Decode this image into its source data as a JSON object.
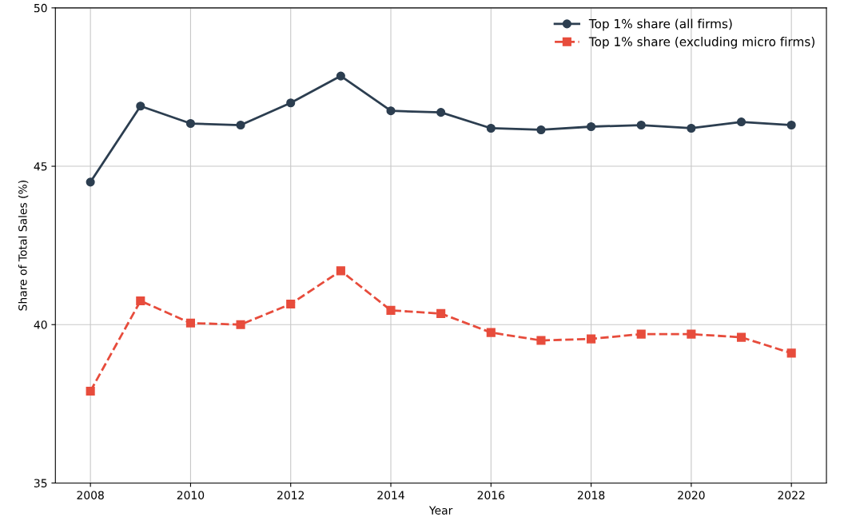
{
  "chart_data": {
    "type": "line",
    "xlabel": "Year",
    "ylabel": "Share of Total Sales (%)",
    "x": [
      2008,
      2009,
      2010,
      2011,
      2012,
      2013,
      2014,
      2015,
      2016,
      2017,
      2018,
      2019,
      2020,
      2021,
      2022
    ],
    "series": [
      {
        "name": "Top 1% share (all firms)",
        "color": "#2c3e50",
        "marker": "circle",
        "line_style": "solid",
        "values": [
          44.5,
          46.9,
          46.35,
          46.3,
          47.0,
          47.85,
          46.75,
          46.7,
          46.2,
          46.15,
          46.25,
          46.3,
          46.2,
          46.4,
          46.3
        ]
      },
      {
        "name": "Top 1% share (excluding micro firms)",
        "color": "#e74c3c",
        "marker": "square",
        "line_style": "dashed",
        "values": [
          37.9,
          40.75,
          40.05,
          40.0,
          40.65,
          41.7,
          40.45,
          40.35,
          39.75,
          39.5,
          39.55,
          39.7,
          39.7,
          39.6,
          39.1
        ]
      }
    ],
    "xlim": [
      2007.3,
      2022.7
    ],
    "xticks": [
      2008,
      2010,
      2012,
      2014,
      2016,
      2018,
      2020,
      2022
    ],
    "ylim": [
      35,
      50
    ],
    "yticks": [
      35,
      40,
      45,
      50
    ],
    "grid": true,
    "legend": "top right"
  }
}
